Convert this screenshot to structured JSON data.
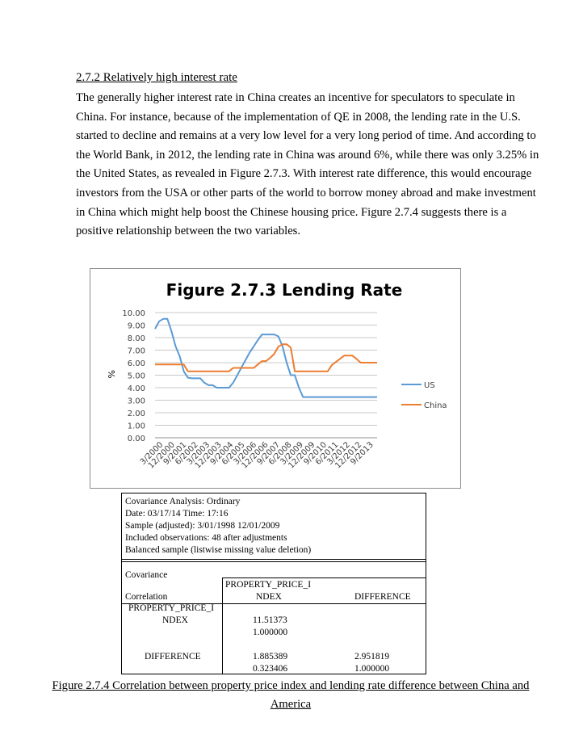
{
  "section": {
    "heading": "2.7.2 Relatively high interest rate",
    "paragraph": "The generally higher interest rate in China creates an incentive for speculators to speculate in China. For instance, because of the implementation of QE in 2008, the lending rate in the U.S. started to decline and remains at a very low level for a very long period of time. And according to the World Bank, in 2012, the lending rate in China was around 6%, while there was only 3.25% in the United States, as revealed in Figure 2.7.3. With interest rate difference, this would encourage investors from the USA or other parts of the world to borrow money abroad and make investment in China which might help boost the Chinese housing price. Figure 2.7.4 suggests there is a positive relationship between the two variables."
  },
  "chart_data": {
    "type": "line",
    "title": "Figure 2.7.3 Lending Rate",
    "ylabel": "%",
    "xlabel": "",
    "ylim": [
      0,
      10
    ],
    "yticks": [
      "0.00",
      "1.00",
      "2.00",
      "3.00",
      "4.00",
      "5.00",
      "6.00",
      "7.00",
      "8.00",
      "9.00",
      "10.00"
    ],
    "xtick_labels": [
      "3/2000",
      "12/2000",
      "9/2001",
      "6/2002",
      "3/2003",
      "12/2003",
      "9/2004",
      "6/2005",
      "3/2006",
      "12/2006",
      "9/2007",
      "6/2008",
      "3/2009",
      "12/2009",
      "9/2010",
      "6/2011",
      "3/2012",
      "12/2012",
      "9/2013"
    ],
    "grid": true,
    "legend_position": "right",
    "series": [
      {
        "name": "US",
        "color": "#5b9bd5",
        "points": [
          [
            0,
            8.7
          ],
          [
            1,
            9.3
          ],
          [
            2,
            9.5
          ],
          [
            3,
            9.5
          ],
          [
            4,
            8.5
          ],
          [
            5,
            7.3
          ],
          [
            6,
            6.5
          ],
          [
            7,
            5.3
          ],
          [
            8,
            4.8
          ],
          [
            9,
            4.75
          ],
          [
            10,
            4.75
          ],
          [
            11,
            4.75
          ],
          [
            12,
            4.4
          ],
          [
            13,
            4.2
          ],
          [
            14,
            4.2
          ],
          [
            15,
            4.0
          ],
          [
            16,
            4.0
          ],
          [
            17,
            4.0
          ],
          [
            18,
            4.0
          ],
          [
            19,
            4.4
          ],
          [
            20,
            5.0
          ],
          [
            21,
            5.6
          ],
          [
            22,
            6.2
          ],
          [
            23,
            6.8
          ],
          [
            24,
            7.3
          ],
          [
            25,
            7.8
          ],
          [
            26,
            8.25
          ],
          [
            27,
            8.25
          ],
          [
            28,
            8.25
          ],
          [
            29,
            8.25
          ],
          [
            30,
            8.1
          ],
          [
            31,
            7.3
          ],
          [
            32,
            6.0
          ],
          [
            33,
            5.0
          ],
          [
            34,
            5.0
          ],
          [
            35,
            4.0
          ],
          [
            36,
            3.25
          ],
          [
            37,
            3.25
          ],
          [
            38,
            3.25
          ],
          [
            39,
            3.25
          ],
          [
            40,
            3.25
          ],
          [
            41,
            3.25
          ],
          [
            42,
            3.25
          ],
          [
            43,
            3.25
          ],
          [
            44,
            3.25
          ],
          [
            45,
            3.25
          ],
          [
            46,
            3.25
          ],
          [
            47,
            3.25
          ],
          [
            48,
            3.25
          ],
          [
            49,
            3.25
          ],
          [
            50,
            3.25
          ],
          [
            51,
            3.25
          ],
          [
            52,
            3.25
          ],
          [
            53,
            3.25
          ],
          [
            54,
            3.25
          ]
        ]
      },
      {
        "name": "China",
        "color": "#ed7d31",
        "points": [
          [
            0,
            5.85
          ],
          [
            7,
            5.85
          ],
          [
            8,
            5.31
          ],
          [
            18,
            5.31
          ],
          [
            19,
            5.58
          ],
          [
            24,
            5.58
          ],
          [
            25,
            5.85
          ],
          [
            26,
            6.12
          ],
          [
            27,
            6.12
          ],
          [
            28,
            6.39
          ],
          [
            29,
            6.7
          ],
          [
            30,
            7.29
          ],
          [
            31,
            7.47
          ],
          [
            32,
            7.47
          ],
          [
            33,
            7.2
          ],
          [
            34,
            5.31
          ],
          [
            42,
            5.31
          ],
          [
            43,
            5.81
          ],
          [
            44,
            6.06
          ],
          [
            45,
            6.31
          ],
          [
            46,
            6.56
          ],
          [
            47,
            6.56
          ],
          [
            48,
            6.56
          ],
          [
            49,
            6.3
          ],
          [
            50,
            6.0
          ],
          [
            54,
            6.0
          ]
        ]
      }
    ]
  },
  "stats": {
    "header_lines": [
      "Covariance Analysis: Ordinary",
      "Date: 03/17/14   Time: 17:16",
      "Sample (adjusted): 3/01/1998 12/01/2009",
      "Included observations: 48 after adjustments",
      "Balanced sample (listwise missing value deletion)"
    ],
    "covariance_label": "Covariance",
    "correlation_label": "Correlation",
    "col1_header_line1": "PROPERTY_PRICE_I",
    "col1_header_line2": "NDEX",
    "col2_header": "DIFFERENCE",
    "row1_label_line1": "PROPERTY_PRICE_I",
    "row1_label_line2": "NDEX",
    "row1_cov": "11.51373",
    "row1_corr": "1.000000",
    "row2_label": "DIFFERENCE",
    "row2_cov1": "1.885389",
    "row2_corr1": "0.323406",
    "row2_cov2": "2.951819",
    "row2_corr2": "1.000000"
  },
  "caption": {
    "line1": "Figure 2.7.4 Correlation between property price index and lending rate difference between China and",
    "line2": "America"
  }
}
